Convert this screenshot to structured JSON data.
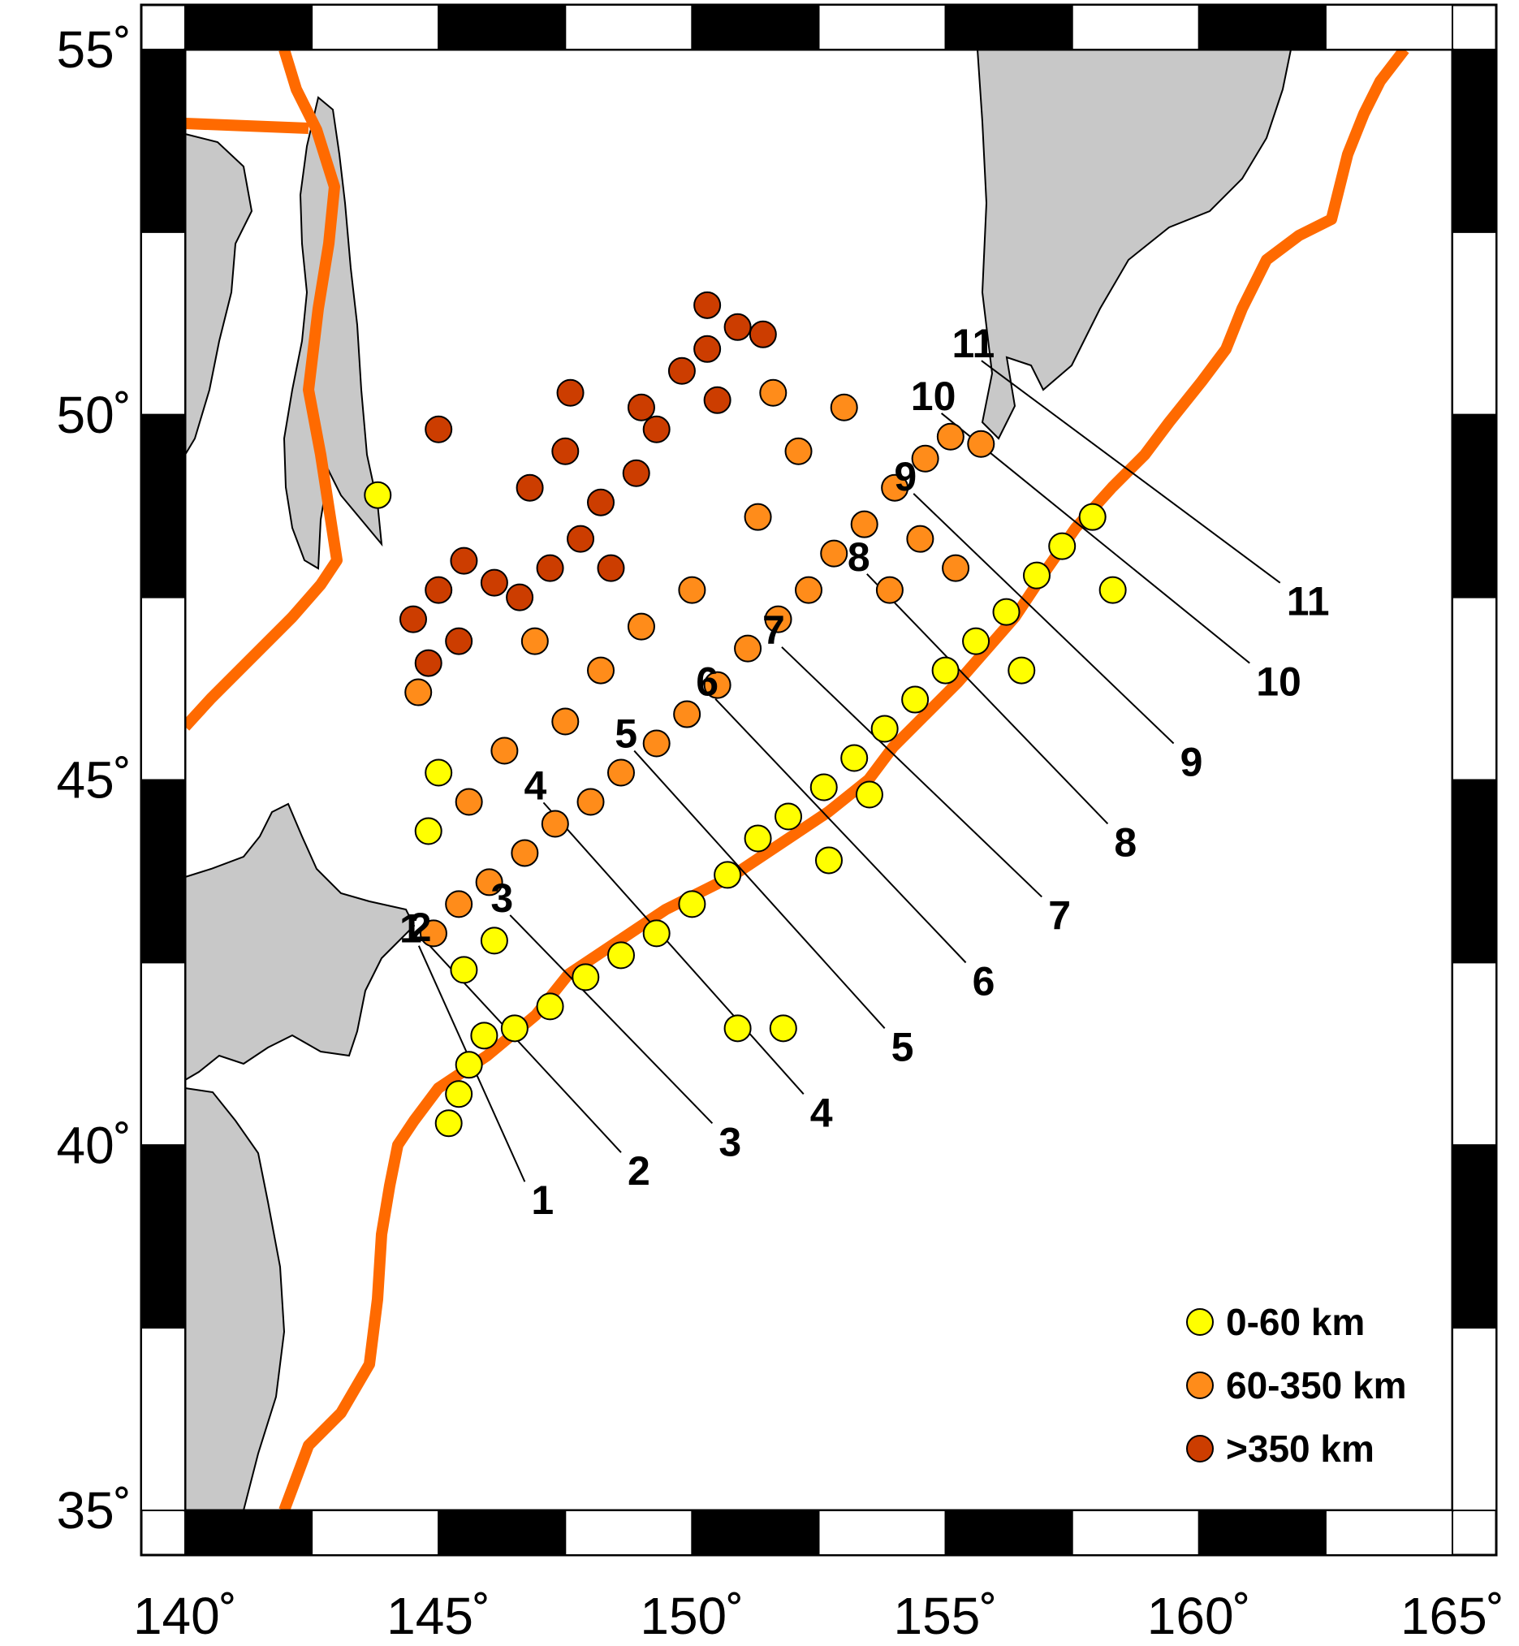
{
  "map": {
    "lon_range": [
      140,
      165
    ],
    "lat_range": [
      35,
      55
    ],
    "lon_ticks": [
      {
        "value": 140,
        "label": "140˚"
      },
      {
        "value": 145,
        "label": "145˚"
      },
      {
        "value": 150,
        "label": "150˚"
      },
      {
        "value": 155,
        "label": "155˚"
      },
      {
        "value": 160,
        "label": "160˚"
      },
      {
        "value": 165,
        "label": "165˚"
      }
    ],
    "lat_ticks": [
      {
        "value": 35,
        "label": "35˚"
      },
      {
        "value": 40,
        "label": "40˚"
      },
      {
        "value": 45,
        "label": "45˚"
      },
      {
        "value": 50,
        "label": "50˚"
      },
      {
        "value": 55,
        "label": "55˚"
      }
    ],
    "colors": {
      "land": "#c8c8c8",
      "sea": "#ffffff",
      "plate_boundary": "#ff6a00",
      "shallow": "#ffff00",
      "intermediate": "#ff8c1a",
      "deep": "#cc3d00"
    },
    "legend": [
      {
        "label": "0-60 km",
        "color": "#ffff00"
      },
      {
        "label": "60-350 km",
        "color": "#ff8c1a"
      },
      {
        "label": ">350 km",
        "color": "#cc3d00"
      }
    ],
    "profiles": [
      {
        "label": "1",
        "start": [
          145.6,
          41.2
        ],
        "end": [
          146.7,
          39.5
        ]
      },
      {
        "label": "2",
        "start": [
          146.6,
          41.4
        ],
        "end": [
          148.6,
          39.9
        ]
      },
      {
        "label": "3",
        "start": [
          148.3,
          41.8
        ],
        "end": [
          150.4,
          40.3
        ]
      },
      {
        "label": "4",
        "start": [
          149.5,
          42.8
        ],
        "end": [
          152.2,
          40.7
        ]
      },
      {
        "label": "5",
        "start": [
          151.2,
          43.6
        ],
        "end": [
          153.8,
          41.6
        ]
      },
      {
        "label": "6",
        "start": [
          152.8,
          44.4
        ],
        "end": [
          155.4,
          42.5
        ]
      },
      {
        "label": "7",
        "start": [
          154.2,
          45.2
        ],
        "end": [
          156.9,
          43.4
        ]
      },
      {
        "label": "8",
        "start": [
          155.7,
          46.2
        ],
        "end": [
          158.2,
          44.4
        ]
      },
      {
        "label": "9",
        "start": [
          156.8,
          47.3
        ],
        "end": [
          159.5,
          45.5
        ]
      },
      {
        "label": "10",
        "start": [
          157.8,
          48.4
        ],
        "end": [
          161.0,
          46.6
        ]
      },
      {
        "label": "11",
        "start": [
          158.5,
          49.3
        ],
        "end": [
          161.6,
          47.7
        ]
      }
    ],
    "earthquakes": [
      {
        "depth_class": "shallow",
        "points": [
          [
            145.2,
            40.3
          ],
          [
            145.4,
            40.7
          ],
          [
            145.6,
            41.1
          ],
          [
            145.9,
            41.5
          ],
          [
            146.5,
            41.6
          ],
          [
            147.2,
            41.9
          ],
          [
            147.9,
            42.3
          ],
          [
            148.6,
            42.6
          ],
          [
            149.3,
            42.9
          ],
          [
            150.0,
            43.3
          ],
          [
            150.7,
            43.7
          ],
          [
            151.3,
            44.2
          ],
          [
            151.9,
            44.5
          ],
          [
            152.6,
            44.9
          ],
          [
            153.2,
            45.3
          ],
          [
            153.8,
            45.7
          ],
          [
            154.4,
            46.1
          ],
          [
            155.0,
            46.5
          ],
          [
            155.6,
            46.9
          ],
          [
            156.2,
            47.3
          ],
          [
            156.8,
            47.8
          ],
          [
            157.3,
            48.2
          ],
          [
            157.9,
            48.6
          ],
          [
            158.3,
            47.6
          ],
          [
            150.9,
            41.6
          ],
          [
            151.8,
            41.6
          ],
          [
            145.5,
            42.4
          ],
          [
            146.1,
            42.8
          ],
          [
            144.8,
            44.3
          ],
          [
            145.0,
            45.1
          ],
          [
            143.8,
            48.9
          ],
          [
            153.5,
            44.8
          ],
          [
            156.5,
            46.5
          ],
          [
            152.7,
            43.9
          ]
        ]
      },
      {
        "depth_class": "intermediate",
        "points": [
          [
            144.9,
            42.9
          ],
          [
            145.4,
            43.3
          ],
          [
            146.0,
            43.6
          ],
          [
            146.7,
            44.0
          ],
          [
            147.3,
            44.4
          ],
          [
            148.0,
            44.7
          ],
          [
            148.6,
            45.1
          ],
          [
            149.3,
            45.5
          ],
          [
            149.9,
            45.9
          ],
          [
            150.5,
            46.3
          ],
          [
            151.1,
            46.8
          ],
          [
            151.7,
            47.2
          ],
          [
            152.3,
            47.6
          ],
          [
            152.8,
            48.1
          ],
          [
            153.4,
            48.5
          ],
          [
            154.0,
            49.0
          ],
          [
            154.6,
            49.4
          ],
          [
            155.1,
            49.7
          ],
          [
            155.7,
            49.6
          ],
          [
            145.6,
            44.7
          ],
          [
            146.3,
            45.4
          ],
          [
            147.5,
            45.8
          ],
          [
            148.2,
            46.5
          ],
          [
            149.0,
            47.1
          ],
          [
            150.0,
            47.6
          ],
          [
            151.3,
            48.6
          ],
          [
            152.1,
            49.5
          ],
          [
            153.0,
            50.1
          ],
          [
            151.6,
            50.3
          ],
          [
            144.6,
            46.2
          ],
          [
            146.9,
            46.9
          ],
          [
            153.9,
            47.6
          ],
          [
            154.5,
            48.3
          ],
          [
            155.2,
            47.9
          ]
        ]
      },
      {
        "depth_class": "deep",
        "points": [
          [
            144.5,
            47.2
          ],
          [
            145.0,
            47.6
          ],
          [
            145.5,
            48.0
          ],
          [
            146.1,
            47.7
          ],
          [
            146.6,
            47.5
          ],
          [
            147.2,
            47.9
          ],
          [
            147.8,
            48.3
          ],
          [
            148.4,
            47.9
          ],
          [
            146.8,
            49.0
          ],
          [
            147.5,
            49.5
          ],
          [
            148.2,
            48.8
          ],
          [
            148.9,
            49.2
          ],
          [
            149.3,
            49.8
          ],
          [
            149.8,
            50.6
          ],
          [
            150.3,
            50.9
          ],
          [
            150.9,
            51.2
          ],
          [
            151.4,
            51.1
          ],
          [
            145.0,
            49.8
          ],
          [
            147.6,
            50.3
          ],
          [
            149.0,
            50.1
          ],
          [
            150.5,
            50.2
          ],
          [
            144.8,
            46.6
          ],
          [
            145.4,
            46.9
          ],
          [
            150.3,
            51.5
          ]
        ]
      }
    ]
  }
}
